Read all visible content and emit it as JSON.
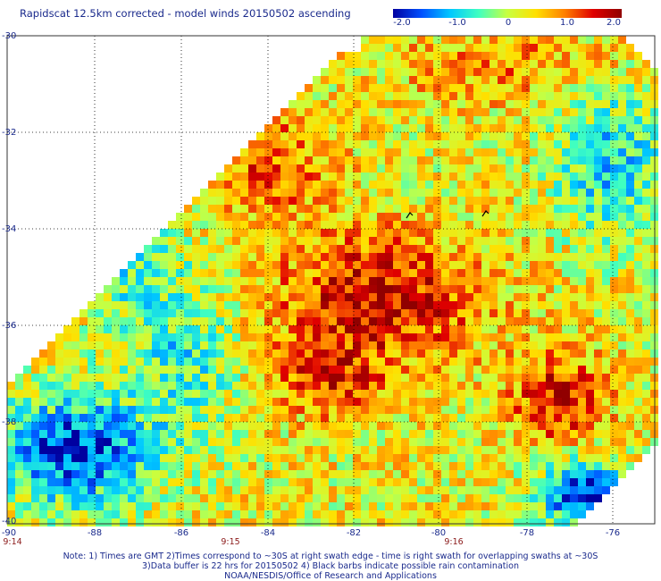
{
  "title": "Rapidscat 12.5km corrected - model winds 20150502 ascending",
  "colorbar": {
    "ticks": [
      "-2.0",
      "-1.0",
      "0",
      "1.0",
      "2.0"
    ],
    "range": [
      -2.0,
      2.0
    ],
    "colors": [
      "#0000a0",
      "#0050ff",
      "#00c8ff",
      "#40ffc0",
      "#c8ff40",
      "#ffe000",
      "#ff8000",
      "#e00000",
      "#900000"
    ]
  },
  "map": {
    "lat_labels": [
      "-30",
      "-32",
      "-34",
      "-36",
      "-38",
      "-40"
    ],
    "lon_labels": [
      "-90",
      "-88",
      "-86",
      "-84",
      "-82",
      "-80",
      "-78",
      "-76"
    ],
    "time_labels": [
      "9:14",
      "9:15",
      "9:16"
    ]
  },
  "notes": {
    "line1": "Note: 1) Times are GMT 2)Times correspond to ~30S at right swath edge - time is right swath for overlapping swaths at ~30S",
    "line2": "3)Data buffer is 22 hrs for 20150502 4) Black barbs indicate possible rain contamination",
    "line3": "NOAA/NESDIS/Office of Research and Applications"
  }
}
